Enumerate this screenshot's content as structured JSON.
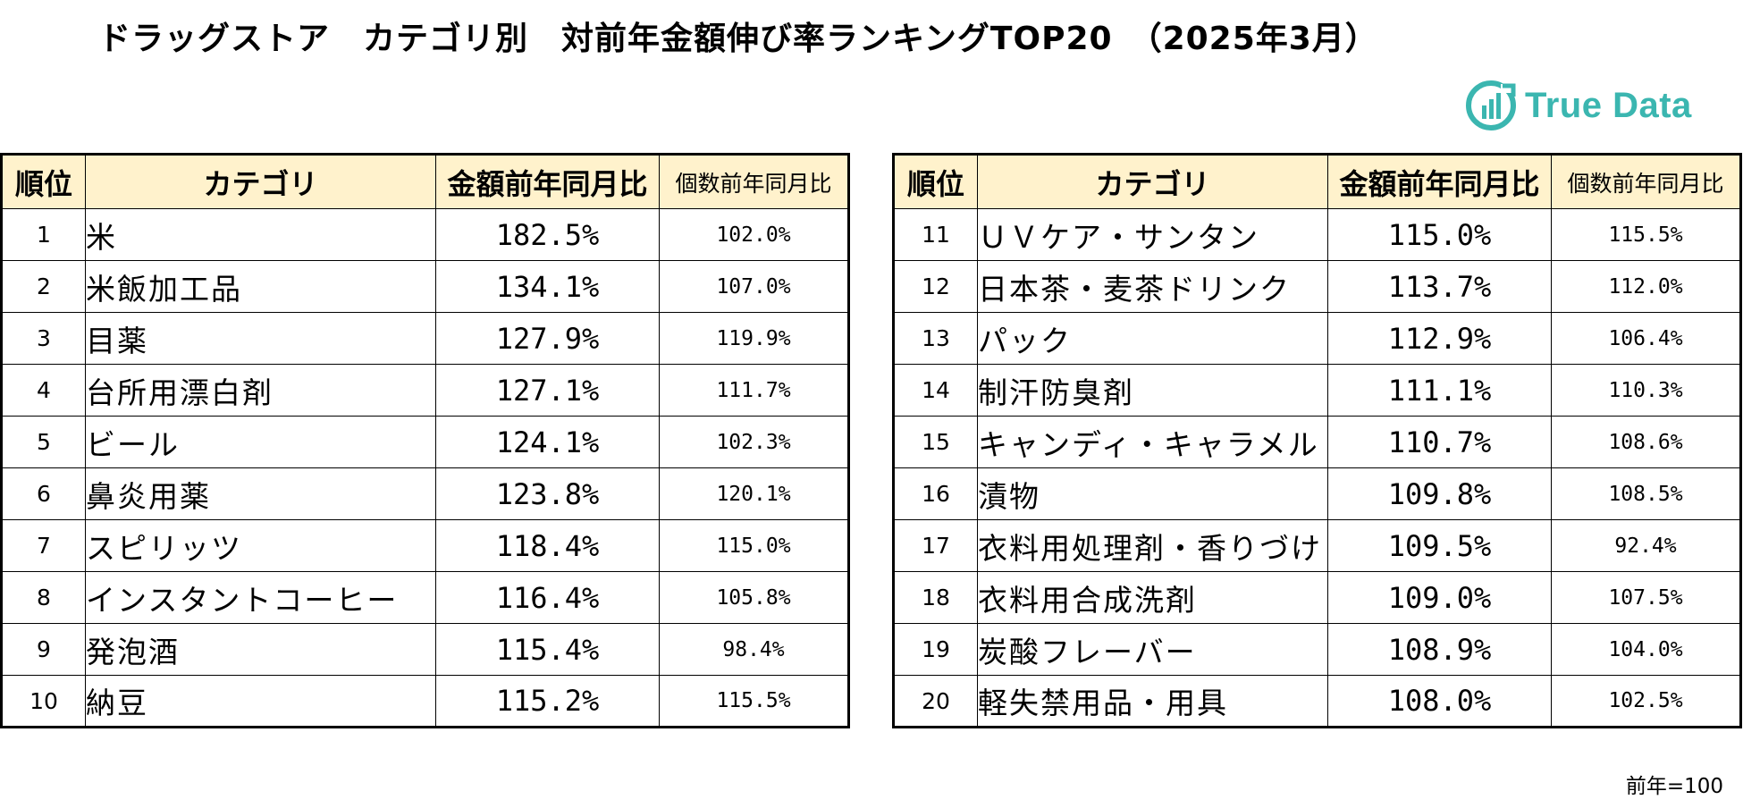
{
  "title": "ドラッグストア　カテゴリ別　対前年金額伸び率ランキングTOP20　（2025年3月）",
  "logo": {
    "text": "True Data",
    "icon": "truedata-logo-icon",
    "color": "#3bb6b0"
  },
  "columns": {
    "rank": "順位",
    "category": "カテゴリ",
    "amount_yoy": "金額前年同月比",
    "count_yoy": "個数前年同月比"
  },
  "header_bg": "#fff2cc",
  "left_rows": [
    {
      "rank": "1",
      "category": "米",
      "amount": "182.5%",
      "count": "102.0%"
    },
    {
      "rank": "2",
      "category": "米飯加工品",
      "amount": "134.1%",
      "count": "107.0%"
    },
    {
      "rank": "3",
      "category": "目薬",
      "amount": "127.9%",
      "count": "119.9%"
    },
    {
      "rank": "4",
      "category": "台所用漂白剤",
      "amount": "127.1%",
      "count": "111.7%"
    },
    {
      "rank": "5",
      "category": "ビール",
      "amount": "124.1%",
      "count": "102.3%"
    },
    {
      "rank": "6",
      "category": "鼻炎用薬",
      "amount": "123.8%",
      "count": "120.1%"
    },
    {
      "rank": "7",
      "category": "スピリッツ",
      "amount": "118.4%",
      "count": "115.0%"
    },
    {
      "rank": "8",
      "category": "インスタントコーヒー",
      "amount": "116.4%",
      "count": "105.8%"
    },
    {
      "rank": "9",
      "category": "発泡酒",
      "amount": "115.4%",
      "count": "98.4%"
    },
    {
      "rank": "10",
      "category": "納豆",
      "amount": "115.2%",
      "count": "115.5%"
    }
  ],
  "right_rows": [
    {
      "rank": "11",
      "category": "ＵＶケア・サンタン",
      "amount": "115.0%",
      "count": "115.5%"
    },
    {
      "rank": "12",
      "category": "日本茶・麦茶ドリンク",
      "amount": "113.7%",
      "count": "112.0%"
    },
    {
      "rank": "13",
      "category": "パック",
      "amount": "112.9%",
      "count": "106.4%"
    },
    {
      "rank": "14",
      "category": "制汗防臭剤",
      "amount": "111.1%",
      "count": "110.3%"
    },
    {
      "rank": "15",
      "category": "キャンディ・キャラメル",
      "amount": "110.7%",
      "count": "108.6%"
    },
    {
      "rank": "16",
      "category": "漬物",
      "amount": "109.8%",
      "count": "108.5%"
    },
    {
      "rank": "17",
      "category": "衣料用処理剤・香りづけ",
      "amount": "109.5%",
      "count": "92.4%"
    },
    {
      "rank": "18",
      "category": "衣料用合成洗剤",
      "amount": "109.0%",
      "count": "107.5%"
    },
    {
      "rank": "19",
      "category": "炭酸フレーバー",
      "amount": "108.9%",
      "count": "104.0%"
    },
    {
      "rank": "20",
      "category": "軽失禁用品・用具",
      "amount": "108.0%",
      "count": "102.5%"
    }
  ],
  "footnote": "前年=100"
}
